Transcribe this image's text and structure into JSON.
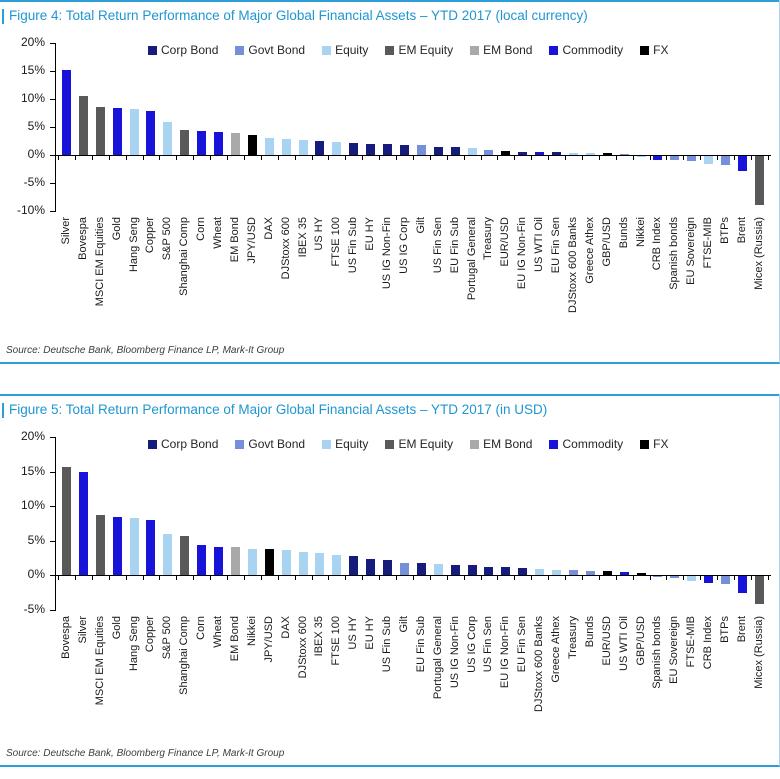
{
  "colors": {
    "Corp Bond": "#151c7c",
    "Govt Bond": "#7590d9",
    "Equity": "#a9d4f1",
    "EM Equity": "#595959",
    "EM Bond": "#a9a9a9",
    "Commodity": "#1713d9",
    "FX": "#000000",
    "accent_rule_blue": "#2e9fd6",
    "title_text_blue": "#1e96d2"
  },
  "legend": {
    "items": [
      {
        "label": "Corp Bond",
        "color": "#151c7c"
      },
      {
        "label": "Govt Bond",
        "color": "#7590d9"
      },
      {
        "label": "Equity",
        "color": "#a9d4f1"
      },
      {
        "label": "EM Equity",
        "color": "#595959"
      },
      {
        "label": "EM Bond",
        "color": "#a9a9a9"
      },
      {
        "label": "Commodity",
        "color": "#1713d9"
      },
      {
        "label": "FX",
        "color": "#000000"
      }
    ]
  },
  "figures": [
    {
      "title": "Figure 4: Total Return Performance of Major Global Financial Assets – YTD 2017 (local currency)",
      "source": "Source: Deutsche Bank, Bloomberg Finance LP, Mark-It Group"
    },
    {
      "title": "Figure 5: Total Return Performance of Major Global Financial Assets – YTD 2017 (in USD)",
      "source": "Source: Deutsche Bank, Bloomberg Finance LP, Mark-It Group"
    }
  ],
  "chart_data": [
    {
      "type": "bar",
      "title": "Figure 4: Total Return Performance of Major Global Financial Assets – YTD 2017 (local currency)",
      "xlabel": "",
      "ylabel": "",
      "ylim": [
        -10,
        20
      ],
      "yticks": [
        "20%",
        "15%",
        "10%",
        "5%",
        "0%",
        "-5%",
        "-10%"
      ],
      "ytick_values": [
        20,
        15,
        10,
        5,
        0,
        -5,
        -10
      ],
      "grid": false,
      "legend_position": "top",
      "categories": [
        "Silver",
        "Bovespa",
        "MSCI EM Equities",
        "Gold",
        "Hang Seng",
        "Copper",
        "S&P 500",
        "Shanghai Comp",
        "Corn",
        "Wheat",
        "EM Bond",
        "JPY/USD",
        "DAX",
        "DJStoxx 600",
        "IBEX 35",
        "US HY",
        "FTSE 100",
        "US Fin Sub",
        "EU HY",
        "US IG Non-Fin",
        "US IG Corp",
        "Gilt",
        "US Fin Sen",
        "EU Fin Sub",
        "Portugal General",
        "Treasury",
        "EUR/USD",
        "EU IG Non-Fin",
        "US WTI Oil",
        "EU Fin Sen",
        "DJStoxx 600 Banks",
        "Greece Athex",
        "GBP/USD",
        "Bunds",
        "Nikkei",
        "CRB Index",
        "Spanish bonds",
        "EU Sovereign",
        "FTSE-MIB",
        "BTPs",
        "Brent",
        "Micex (Russia)"
      ],
      "values": [
        15.1,
        10.6,
        8.5,
        8.4,
        8.3,
        7.8,
        5.9,
        4.4,
        4.2,
        4.1,
        3.9,
        3.6,
        3.1,
        2.8,
        2.6,
        2.5,
        2.3,
        2.1,
        2.0,
        1.9,
        1.8,
        1.7,
        1.5,
        1.4,
        1.2,
        0.9,
        0.7,
        0.6,
        0.5,
        0.5,
        0.4,
        0.3,
        0.3,
        0.1,
        -0.1,
        -0.7,
        -0.8,
        -0.9,
        -1.4,
        -1.6,
        -2.6,
        -8.8
      ],
      "groups": [
        "Commodity",
        "EM Equity",
        "EM Equity",
        "Commodity",
        "Equity",
        "Commodity",
        "Equity",
        "EM Equity",
        "Commodity",
        "Commodity",
        "EM Bond",
        "FX",
        "Equity",
        "Equity",
        "Equity",
        "Corp Bond",
        "Equity",
        "Corp Bond",
        "Corp Bond",
        "Corp Bond",
        "Corp Bond",
        "Govt Bond",
        "Corp Bond",
        "Corp Bond",
        "Equity",
        "Govt Bond",
        "FX",
        "Corp Bond",
        "Commodity",
        "Corp Bond",
        "Equity",
        "Equity",
        "FX",
        "Govt Bond",
        "Equity",
        "Commodity",
        "Govt Bond",
        "Govt Bond",
        "Equity",
        "Govt Bond",
        "Commodity",
        "EM Equity"
      ]
    },
    {
      "type": "bar",
      "title": "Figure 5: Total Return Performance of Major Global Financial Assets – YTD 2017 (in USD)",
      "xlabel": "",
      "ylabel": "",
      "ylim": [
        -5,
        20
      ],
      "yticks": [
        "20%",
        "15%",
        "10%",
        "5%",
        "0%",
        "-5%"
      ],
      "ytick_values": [
        20,
        15,
        10,
        5,
        0,
        -5
      ],
      "grid": false,
      "legend_position": "top",
      "categories": [
        "Bovespa",
        "Silver",
        "MSCI EM Equities",
        "Gold",
        "Hang Seng",
        "Copper",
        "S&P 500",
        "Shanghai Comp",
        "Corn",
        "Wheat",
        "EM Bond",
        "Nikkei",
        "JPY/USD",
        "DAX",
        "DJStoxx 600",
        "IBEX 35",
        "FTSE 100",
        "US HY",
        "EU HY",
        "US Fin Sub",
        "Gilt",
        "EU Fin Sub",
        "Portugal General",
        "US IG Non-Fin",
        "US IG Corp",
        "US Fin Sen",
        "EU IG Non-Fin",
        "EU Fin Sen",
        "DJStoxx 600 Banks",
        "Greece Athex",
        "Treasury",
        "Bunds",
        "EUR/USD",
        "US WTI Oil",
        "GBP/USD",
        "Spanish bonds",
        "EU Sovereign",
        "FTSE-MIB",
        "CRB Index",
        "BTPs",
        "Brent",
        "Micex (Russia)"
      ],
      "values": [
        15.7,
        15.0,
        8.7,
        8.4,
        8.2,
        8.0,
        5.9,
        5.7,
        4.3,
        4.1,
        4.0,
        3.8,
        3.7,
        3.6,
        3.3,
        3.2,
        2.9,
        2.7,
        2.3,
        2.2,
        1.8,
        1.7,
        1.6,
        1.5,
        1.5,
        1.2,
        1.1,
        1.0,
        0.8,
        0.7,
        0.7,
        0.6,
        0.6,
        0.5,
        0.3,
        -0.2,
        -0.3,
        -0.7,
        -1.0,
        -1.1,
        -2.4,
        -4.0
      ],
      "groups": [
        "EM Equity",
        "Commodity",
        "EM Equity",
        "Commodity",
        "Equity",
        "Commodity",
        "Equity",
        "EM Equity",
        "Commodity",
        "Commodity",
        "EM Bond",
        "Equity",
        "FX",
        "Equity",
        "Equity",
        "Equity",
        "Equity",
        "Corp Bond",
        "Corp Bond",
        "Corp Bond",
        "Govt Bond",
        "Corp Bond",
        "Equity",
        "Corp Bond",
        "Corp Bond",
        "Corp Bond",
        "Corp Bond",
        "Corp Bond",
        "Equity",
        "Equity",
        "Govt Bond",
        "Govt Bond",
        "FX",
        "Commodity",
        "FX",
        "Govt Bond",
        "Govt Bond",
        "Equity",
        "Commodity",
        "Govt Bond",
        "Commodity",
        "EM Equity"
      ]
    }
  ]
}
